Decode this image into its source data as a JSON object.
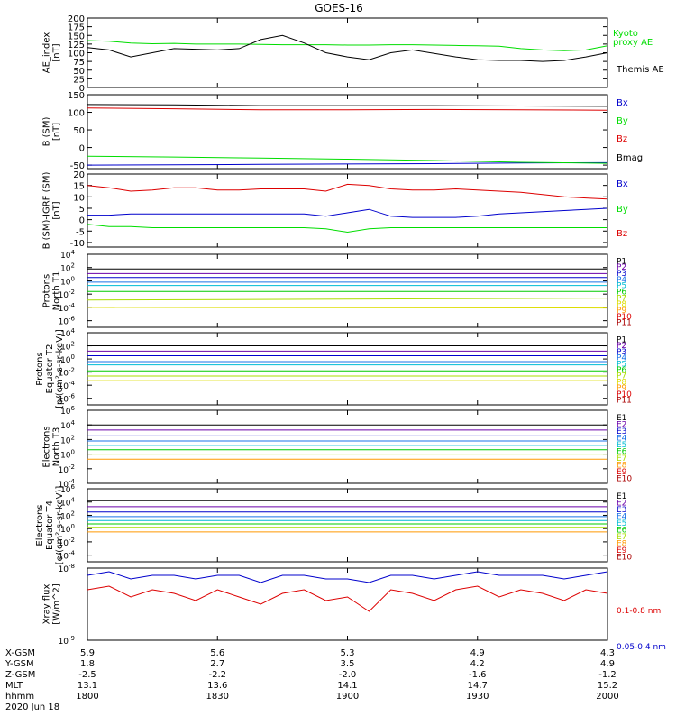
{
  "title": "GOES-16",
  "colors": {
    "green": "#00dd00",
    "black": "#000000",
    "blue": "#0000cc",
    "red": "#dd0000"
  },
  "chart_data": [
    {
      "type": "line",
      "ylabel": [
        "AE_index",
        "[nT]"
      ],
      "ylim": [
        0,
        200
      ],
      "ytick_labels": [
        "0",
        "25",
        "50",
        "75",
        "100",
        "125",
        "150",
        "175",
        "200"
      ],
      "ytick_values": [
        0,
        25,
        50,
        75,
        100,
        125,
        150,
        175,
        200
      ],
      "x": [
        0,
        5,
        10,
        15,
        20,
        25,
        30,
        35,
        40,
        45,
        50,
        55,
        60,
        65,
        70,
        75,
        80,
        85,
        90,
        95,
        100,
        105,
        110,
        115,
        120
      ],
      "series": [
        {
          "name": "Kyoto proxy AE",
          "color": "#00dd00",
          "values": [
            135,
            133,
            128,
            126,
            127,
            125,
            125,
            125,
            124,
            123,
            123,
            123,
            122,
            122,
            123,
            123,
            122,
            121,
            120,
            119,
            112,
            108,
            106,
            108,
            120
          ]
        },
        {
          "name": "Themis AE",
          "color": "#000000",
          "values": [
            115,
            108,
            88,
            100,
            112,
            110,
            108,
            112,
            138,
            150,
            128,
            100,
            88,
            80,
            100,
            108,
            98,
            88,
            80,
            78,
            78,
            75,
            78,
            88,
            100
          ]
        }
      ],
      "legend": [
        {
          "text": "Kyoto",
          "color": "#00dd00"
        },
        {
          "text": "proxy AE",
          "color": "#00dd00"
        },
        {
          "text": "Themis AE",
          "color": "#000000"
        }
      ]
    },
    {
      "type": "line",
      "ylabel": [
        "B (SM)",
        "[nT]"
      ],
      "ylim": [
        -60,
        150
      ],
      "ytick_labels": [
        "-50",
        "0",
        "50",
        "100",
        "150"
      ],
      "ytick_values": [
        -50,
        0,
        50,
        100,
        150
      ],
      "x": [
        0,
        20,
        40,
        60,
        80,
        100,
        120
      ],
      "series": [
        {
          "name": "Bx",
          "color": "#0000cc",
          "values": [
            -50,
            -49,
            -48,
            -47,
            -46,
            -44,
            -43
          ]
        },
        {
          "name": "By",
          "color": "#00dd00",
          "values": [
            -25,
            -27,
            -30,
            -33,
            -37,
            -42,
            -45
          ]
        },
        {
          "name": "Bz",
          "color": "#dd0000",
          "values": [
            112,
            110,
            107,
            107,
            108,
            107,
            106
          ]
        },
        {
          "name": "Bmag",
          "color": "#000000",
          "values": [
            122,
            121,
            119,
            119,
            119,
            118,
            117
          ]
        }
      ],
      "legend": [
        {
          "text": "Bx",
          "color": "#0000cc"
        },
        {
          "text": "By",
          "color": "#00dd00"
        },
        {
          "text": "Bz",
          "color": "#dd0000"
        },
        {
          "text": "Bmag",
          "color": "#000000"
        }
      ]
    },
    {
      "type": "line",
      "ylabel": [
        "B (SM)-IGRF (SM)",
        "[nT]"
      ],
      "ylim": [
        -12,
        20
      ],
      "ytick_labels": [
        "-10",
        "-5",
        "0",
        "5",
        "10",
        "15",
        "20"
      ],
      "ytick_values": [
        -10,
        -5,
        0,
        5,
        10,
        15,
        20
      ],
      "x": [
        0,
        5,
        10,
        15,
        20,
        25,
        30,
        35,
        40,
        45,
        50,
        55,
        60,
        65,
        70,
        75,
        80,
        85,
        90,
        95,
        100,
        105,
        110,
        115,
        120
      ],
      "series": [
        {
          "name": "Bx",
          "color": "#0000cc",
          "values": [
            2,
            2,
            2.5,
            2.5,
            2.5,
            2.5,
            2.5,
            2.5,
            2.5,
            2.5,
            2.5,
            1.5,
            3,
            4.5,
            1.5,
            1,
            1,
            1,
            1.5,
            2.5,
            3,
            3.5,
            4,
            4.5,
            5
          ]
        },
        {
          "name": "By",
          "color": "#00dd00",
          "values": [
            -2,
            -3,
            -3,
            -3.5,
            -3.5,
            -3.5,
            -3.5,
            -3.5,
            -3.5,
            -3.5,
            -3.5,
            -4,
            -5.5,
            -4,
            -3.5,
            -3.5,
            -3.5,
            -3.5,
            -3.5,
            -3.5,
            -3.5,
            -3.5,
            -3.5,
            -3.5,
            -3.5
          ]
        },
        {
          "name": "Bz",
          "color": "#dd0000",
          "values": [
            15,
            14,
            12.5,
            13,
            14,
            14,
            13,
            13,
            13.5,
            13.5,
            13.5,
            12.5,
            15.5,
            15,
            13.5,
            13,
            13,
            13.5,
            13,
            12.5,
            12,
            11,
            10,
            9.5,
            9
          ]
        }
      ],
      "legend": [
        {
          "text": "Bx",
          "color": "#0000cc"
        },
        {
          "text": "By",
          "color": "#00dd00"
        },
        {
          "text": "Bz",
          "color": "#dd0000"
        }
      ]
    },
    {
      "type": "line",
      "log": true,
      "ylabel": [
        "Protons",
        "North T1"
      ],
      "ylim_exp": [
        -7,
        4
      ],
      "ytick_exps": [
        -6,
        -4,
        -2,
        0,
        2,
        4
      ],
      "series": [
        {
          "name": "P1",
          "color": "#000000",
          "values": [
            1.8,
            1.8
          ]
        },
        {
          "name": "P2",
          "color": "#6a00aa",
          "values": [
            1.1,
            1.1
          ]
        },
        {
          "name": "P3",
          "color": "#0000cc",
          "values": [
            0.5,
            0.5
          ]
        },
        {
          "name": "P4",
          "color": "#1a73e8",
          "values": [
            -0.2,
            -0.2
          ]
        },
        {
          "name": "P5",
          "color": "#00bcd4",
          "values": [
            -0.7,
            -0.7
          ]
        },
        {
          "name": "P6",
          "color": "#00cc00",
          "values": [
            -1.6,
            -1.6
          ]
        },
        {
          "name": "P7",
          "color": "#aadd00",
          "values": [
            -2.9,
            -2.6
          ]
        },
        {
          "name": "P8",
          "color": "#dddd00",
          "values": [
            -4.0,
            -4.1
          ]
        }
      ],
      "legend": [
        {
          "text": "P1",
          "color": "#000000"
        },
        {
          "text": "P2",
          "color": "#6a00aa"
        },
        {
          "text": "P3",
          "color": "#0000cc"
        },
        {
          "text": "P4",
          "color": "#1a73e8"
        },
        {
          "text": "P5",
          "color": "#00bcd4"
        },
        {
          "text": "P6",
          "color": "#00cc00"
        },
        {
          "text": "P7",
          "color": "#aadd00"
        },
        {
          "text": "P8",
          "color": "#dddd00"
        },
        {
          "text": "P9",
          "color": "#ff9900"
        },
        {
          "text": "P10",
          "color": "#dd0000"
        },
        {
          "text": "P11",
          "color": "#aa0000"
        }
      ]
    },
    {
      "type": "line",
      "log": true,
      "ylabel": [
        "Protons",
        "Equator T2",
        "[p/(cm²-s-sr-keV)]"
      ],
      "ylim_exp": [
        -7,
        4
      ],
      "ytick_exps": [
        -6,
        -4,
        -2,
        0,
        2,
        4
      ],
      "series": [
        {
          "name": "P1",
          "color": "#000000",
          "values": [
            2.0,
            2.0
          ]
        },
        {
          "name": "P2",
          "color": "#6a00aa",
          "values": [
            1.2,
            1.2
          ]
        },
        {
          "name": "P3",
          "color": "#0000cc",
          "values": [
            0.5,
            0.5
          ]
        },
        {
          "name": "P4",
          "color": "#1a73e8",
          "values": [
            -0.4,
            -0.4
          ]
        },
        {
          "name": "P5",
          "color": "#00bcd4",
          "values": [
            -0.9,
            -0.9
          ]
        },
        {
          "name": "P6",
          "color": "#00cc00",
          "values": [
            -1.8,
            -1.8
          ]
        },
        {
          "name": "P7",
          "color": "#aadd00",
          "values": [
            -2.6,
            -2.6
          ]
        },
        {
          "name": "P8",
          "color": "#dddd00",
          "values": [
            -3.3,
            -3.3
          ]
        }
      ],
      "legend": [
        {
          "text": "P1",
          "color": "#000000"
        },
        {
          "text": "P2",
          "color": "#6a00aa"
        },
        {
          "text": "P3",
          "color": "#0000cc"
        },
        {
          "text": "P4",
          "color": "#1a73e8"
        },
        {
          "text": "P5",
          "color": "#00bcd4"
        },
        {
          "text": "P6",
          "color": "#00cc00"
        },
        {
          "text": "P7",
          "color": "#aadd00"
        },
        {
          "text": "P8",
          "color": "#dddd00"
        },
        {
          "text": "P9",
          "color": "#ff9900"
        },
        {
          "text": "P10",
          "color": "#dd0000"
        },
        {
          "text": "P11",
          "color": "#aa0000"
        }
      ]
    },
    {
      "type": "line",
      "log": true,
      "ylabel": [
        "Electrons",
        "North T3"
      ],
      "ylim_exp": [
        -4,
        6
      ],
      "ytick_exps": [
        -4,
        -2,
        0,
        2,
        4,
        6
      ],
      "series": [
        {
          "name": "E1",
          "color": "#000000",
          "values": [
            4.0,
            4.0
          ]
        },
        {
          "name": "E2",
          "color": "#6a00aa",
          "values": [
            3.3,
            3.3
          ]
        },
        {
          "name": "E3",
          "color": "#0000cc",
          "values": [
            2.5,
            2.5
          ]
        },
        {
          "name": "E4",
          "color": "#1a73e8",
          "values": [
            1.8,
            1.8
          ]
        },
        {
          "name": "E5",
          "color": "#00bcd4",
          "values": [
            1.2,
            1.2
          ]
        },
        {
          "name": "E6",
          "color": "#00cc00",
          "values": [
            0.6,
            0.6
          ]
        },
        {
          "name": "E7",
          "color": "#aadd00",
          "values": [
            0.0,
            0.0
          ]
        },
        {
          "name": "E8",
          "color": "#ff9900",
          "values": [
            -0.7,
            -0.7
          ]
        }
      ],
      "legend": [
        {
          "text": "E1",
          "color": "#000000"
        },
        {
          "text": "E2",
          "color": "#6a00aa"
        },
        {
          "text": "E3",
          "color": "#0000cc"
        },
        {
          "text": "E4",
          "color": "#1a73e8"
        },
        {
          "text": "E5",
          "color": "#00bcd4"
        },
        {
          "text": "E6",
          "color": "#00cc00"
        },
        {
          "text": "E7",
          "color": "#aadd00"
        },
        {
          "text": "E8",
          "color": "#ff9900"
        },
        {
          "text": "E9",
          "color": "#dd0000"
        },
        {
          "text": "E10",
          "color": "#aa0000"
        }
      ]
    },
    {
      "type": "line",
      "log": true,
      "ylabel": [
        "Electrons",
        "Equator T4",
        "[e/(cm²-s-sr-keV)]"
      ],
      "ylim_exp": [
        -5,
        6
      ],
      "ytick_exps": [
        -4,
        -2,
        0,
        2,
        4,
        6
      ],
      "series": [
        {
          "name": "E1",
          "color": "#000000",
          "values": [
            4.2,
            4.2
          ]
        },
        {
          "name": "E2",
          "color": "#6a00aa",
          "values": [
            3.3,
            3.3
          ]
        },
        {
          "name": "E3",
          "color": "#0000cc",
          "values": [
            2.5,
            2.5
          ]
        },
        {
          "name": "E4",
          "color": "#1a73e8",
          "values": [
            1.8,
            1.8
          ]
        },
        {
          "name": "E5",
          "color": "#00bcd4",
          "values": [
            1.2,
            1.2
          ]
        },
        {
          "name": "E6",
          "color": "#00cc00",
          "values": [
            0.7,
            0.7
          ]
        },
        {
          "name": "E7",
          "color": "#aadd00",
          "values": [
            0.2,
            0.2
          ]
        },
        {
          "name": "E8",
          "color": "#ff9900",
          "values": [
            -0.5,
            -0.5
          ]
        }
      ],
      "legend": [
        {
          "text": "E1",
          "color": "#000000"
        },
        {
          "text": "E2",
          "color": "#6a00aa"
        },
        {
          "text": "E3",
          "color": "#0000cc"
        },
        {
          "text": "E4",
          "color": "#1a73e8"
        },
        {
          "text": "E5",
          "color": "#00bcd4"
        },
        {
          "text": "E6",
          "color": "#00cc00"
        },
        {
          "text": "E7",
          "color": "#aadd00"
        },
        {
          "text": "E8",
          "color": "#ff9900"
        },
        {
          "text": "E9",
          "color": "#dd0000"
        },
        {
          "text": "E10",
          "color": "#aa0000"
        }
      ]
    },
    {
      "type": "line",
      "log": true,
      "ylabel": [
        "Xray flux",
        "[W/m^2]"
      ],
      "ylim_exp": [
        -9,
        -8
      ],
      "ytick_exps": [
        -9,
        -8
      ],
      "x": [
        0,
        5,
        10,
        15,
        20,
        25,
        30,
        35,
        40,
        45,
        50,
        55,
        60,
        65,
        70,
        75,
        80,
        85,
        90,
        95,
        100,
        105,
        110,
        115,
        120
      ],
      "series": [
        {
          "name": "0.1-0.8 nm",
          "color": "#dd0000",
          "values": [
            -8.3,
            -8.25,
            -8.4,
            -8.3,
            -8.35,
            -8.45,
            -8.3,
            -8.4,
            -8.5,
            -8.35,
            -8.3,
            -8.45,
            -8.4,
            -8.6,
            -8.3,
            -8.35,
            -8.45,
            -8.3,
            -8.25,
            -8.4,
            -8.3,
            -8.35,
            -8.45,
            -8.3,
            -8.35
          ]
        },
        {
          "name": "0.05-0.4 nm",
          "color": "#0000cc",
          "values": [
            -8.1,
            -8.05,
            -8.15,
            -8.1,
            -8.1,
            -8.15,
            -8.1,
            -8.1,
            -8.2,
            -8.1,
            -8.1,
            -8.15,
            -8.15,
            -8.2,
            -8.1,
            -8.1,
            -8.15,
            -8.1,
            -8.05,
            -8.1,
            -8.1,
            -8.1,
            -8.15,
            -8.1,
            -8.05
          ]
        }
      ],
      "legend": [
        {
          "text": "0.1-0.8 nm",
          "color": "#dd0000"
        },
        {
          "text": "0.05-0.4 nm",
          "color": "#0000cc"
        }
      ]
    }
  ],
  "footer": {
    "row_labels": [
      "X-GSM",
      "Y-GSM",
      "Z-GSM",
      "MLT",
      "hhmm",
      "2020 Jun 18"
    ],
    "columns": [
      [
        "5.9",
        "1.8",
        "-2.5",
        "13.1",
        "1800"
      ],
      [
        "5.6",
        "2.7",
        "-2.2",
        "13.6",
        "1830"
      ],
      [
        "5.3",
        "3.5",
        "-2.0",
        "14.1",
        "1900"
      ],
      [
        "4.9",
        "4.2",
        "-1.6",
        "14.7",
        "1930"
      ],
      [
        "4.3",
        "4.9",
        "-1.2",
        "15.2",
        "2000"
      ]
    ]
  }
}
